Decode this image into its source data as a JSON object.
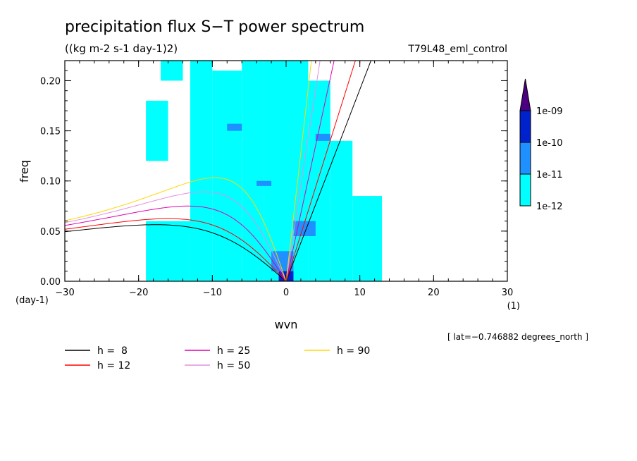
{
  "chart_data": {
    "type": "heatmap",
    "title": "precipitation flux S−T power spectrum",
    "subtitle": "((kg m-2 s-1 day-1)2)",
    "dataset_label": "T79L48_eml_control",
    "xlabel": "wvn",
    "ylabel": "freq",
    "x_unit": "(1)",
    "y_unit": "(day-1)",
    "xlim": [
      -30,
      30
    ],
    "ylim": [
      0,
      0.22
    ],
    "x_ticks": [
      -30,
      -20,
      -10,
      0,
      10,
      20,
      30
    ],
    "x_tick_labels": [
      "−30",
      "−20",
      "−10",
      "0",
      "10",
      "20",
      "30"
    ],
    "y_ticks": [
      0.0,
      0.05,
      0.1,
      0.15,
      0.2
    ],
    "y_tick_labels": [
      "0.00",
      "0.05",
      "0.10",
      "0.15",
      "0.20"
    ],
    "annotation": "[ lat=−0.746882 degrees_north ]",
    "colorbar": {
      "levels": [
        "1e-12",
        "1e-11",
        "1e-10",
        "1e-09"
      ],
      "colors": [
        "#00ffff",
        "#1e90ff",
        "#0022cc",
        "#4b0082"
      ]
    },
    "dispersion_curves": [
      {
        "name": "h =  8",
        "h": 8,
        "color": "#000000"
      },
      {
        "name": "h = 12",
        "h": 12,
        "color": "#ff0000"
      },
      {
        "name": "h = 25",
        "h": 25,
        "color": "#e000b0"
      },
      {
        "name": "h = 50",
        "h": 50,
        "color": "#e090e0"
      },
      {
        "name": "h = 90",
        "h": 90,
        "color": "#ffd700"
      }
    ],
    "contour_regions": [
      {
        "level": 0,
        "x": [
          -13,
          -10
        ],
        "y": [
          0.0,
          0.22
        ]
      },
      {
        "level": 0,
        "x": [
          -10,
          -6
        ],
        "y": [
          0.0,
          0.21
        ]
      },
      {
        "level": 0,
        "x": [
          -6,
          -3
        ],
        "y": [
          0.0,
          0.22
        ]
      },
      {
        "level": 0,
        "x": [
          -3,
          0
        ],
        "y": [
          0.0,
          0.22
        ]
      },
      {
        "level": 0,
        "x": [
          0,
          3
        ],
        "y": [
          0.0,
          0.22
        ]
      },
      {
        "level": 0,
        "x": [
          3,
          6
        ],
        "y": [
          0.0,
          0.2
        ]
      },
      {
        "level": 0,
        "x": [
          6,
          9
        ],
        "y": [
          0.0,
          0.14
        ]
      },
      {
        "level": 0,
        "x": [
          -19,
          -13
        ],
        "y": [
          0.0,
          0.06
        ]
      },
      {
        "level": 0,
        "x": [
          -19,
          -16
        ],
        "y": [
          0.12,
          0.18
        ]
      },
      {
        "level": 0,
        "x": [
          -17,
          -14
        ],
        "y": [
          0.2,
          0.22
        ]
      },
      {
        "level": 0,
        "x": [
          9,
          13
        ],
        "y": [
          0.0,
          0.085
        ]
      },
      {
        "level": 1,
        "x": [
          -8,
          -6
        ],
        "y": [
          0.15,
          0.157
        ]
      },
      {
        "level": 1,
        "x": [
          -4,
          -2
        ],
        "y": [
          0.095,
          0.1
        ]
      },
      {
        "level": 1,
        "x": [
          -2,
          1
        ],
        "y": [
          0.01,
          0.03
        ]
      },
      {
        "level": 1,
        "x": [
          1,
          4
        ],
        "y": [
          0.045,
          0.06
        ]
      },
      {
        "level": 1,
        "x": [
          4,
          6
        ],
        "y": [
          0.14,
          0.147
        ]
      },
      {
        "level": 2,
        "x": [
          -1,
          1
        ],
        "y": [
          0.0,
          0.01
        ]
      }
    ]
  }
}
